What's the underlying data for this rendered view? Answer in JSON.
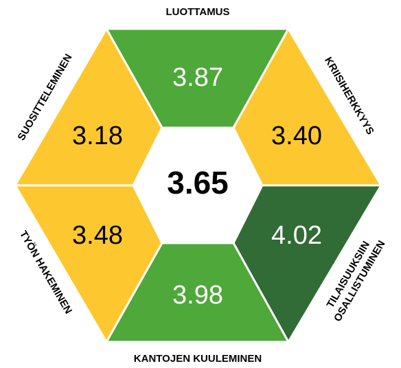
{
  "center_value": "3.65",
  "segments": [
    {
      "label": "LUOTTAMUS",
      "value": "3.87",
      "color": "#4ea83a",
      "text_color": "#ffffff"
    },
    {
      "label": "KRIISIHERKKYYS",
      "value": "3.40",
      "color": "#fdc82f",
      "text_color": "#000000"
    },
    {
      "label": [
        "TILAISUUKSIIN",
        "OSALLISTUMINEN"
      ],
      "value": "4.02",
      "color": "#316b35",
      "text_color": "#ffffff"
    },
    {
      "label": "KANTOJEN KUULEMINEN",
      "value": "3.98",
      "color": "#4ea83a",
      "text_color": "#ffffff"
    },
    {
      "label": "TYÖN HAKEMINEN",
      "value": "3.48",
      "color": "#fdc82f",
      "text_color": "#000000"
    },
    {
      "label": "SUOSITTELEMINEN",
      "value": "3.18",
      "color": "#fdc82f",
      "text_color": "#000000"
    }
  ]
}
